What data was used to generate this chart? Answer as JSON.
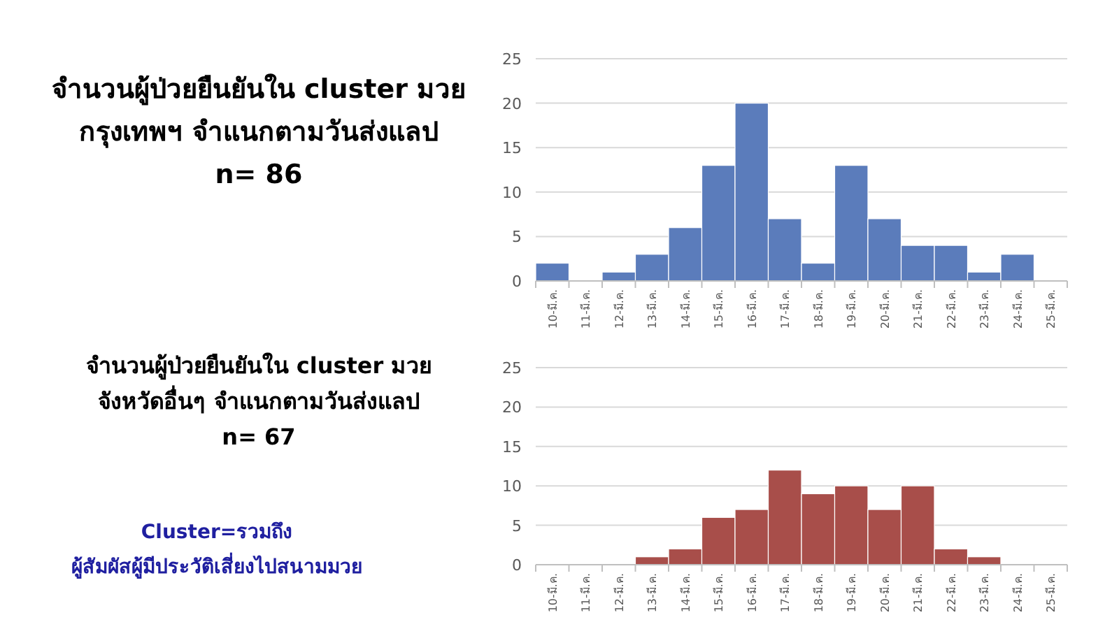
{
  "chart_data": [
    {
      "type": "bar",
      "title": "จำนวนผู้ป่วยยืนยันใน cluster มวย",
      "subtitle": "กรุงเทพฯ จำแนกตามวันส่งแลป",
      "annotations": [
        "n= 86"
      ],
      "categories": [
        "10-มี.ค.",
        "11-มี.ค.",
        "12-มี.ค.",
        "13-มี.ค.",
        "14-มี.ค.",
        "15-มี.ค.",
        "16-มี.ค.",
        "17-มี.ค.",
        "18-มี.ค.",
        "19-มี.ค.",
        "20-มี.ค.",
        "21-มี.ค.",
        "22-มี.ค.",
        "23-มี.ค.",
        "24-มี.ค.",
        "25-มี.ค."
      ],
      "values": [
        2,
        0,
        1,
        3,
        6,
        13,
        20,
        7,
        2,
        13,
        7,
        4,
        4,
        1,
        3,
        0
      ],
      "color": "#5b7cbb",
      "ylim": [
        0,
        25
      ],
      "yticks": [
        0,
        5,
        10,
        15,
        20,
        25
      ],
      "grid": "y"
    },
    {
      "type": "bar",
      "title": "จำนวนผู้ป่วยยืนยันใน cluster มวย",
      "subtitle": "จังหวัดอื่นๆ จำแนกตามวันส่งแลป",
      "annotations": [
        "n= 67",
        "Cluster=รวมถึง",
        "ผู้สัมผัสผู้มีประวัติเสี่ยงไปสนามมวย"
      ],
      "categories": [
        "10-มี.ค.",
        "11-มี.ค.",
        "12-มี.ค.",
        "13-มี.ค.",
        "14-มี.ค.",
        "15-มี.ค.",
        "16-มี.ค.",
        "17-มี.ค.",
        "18-มี.ค.",
        "19-มี.ค.",
        "20-มี.ค.",
        "21-มี.ค.",
        "22-มี.ค.",
        "23-มี.ค.",
        "24-มี.ค.",
        "25-มี.ค."
      ],
      "values": [
        0,
        0,
        0,
        1,
        2,
        6,
        7,
        12,
        9,
        10,
        7,
        10,
        2,
        1,
        0,
        0
      ],
      "color": "#a84e4a",
      "ylim": [
        0,
        25
      ],
      "yticks": [
        0,
        5,
        10,
        15,
        20,
        25
      ],
      "grid": "y"
    }
  ]
}
